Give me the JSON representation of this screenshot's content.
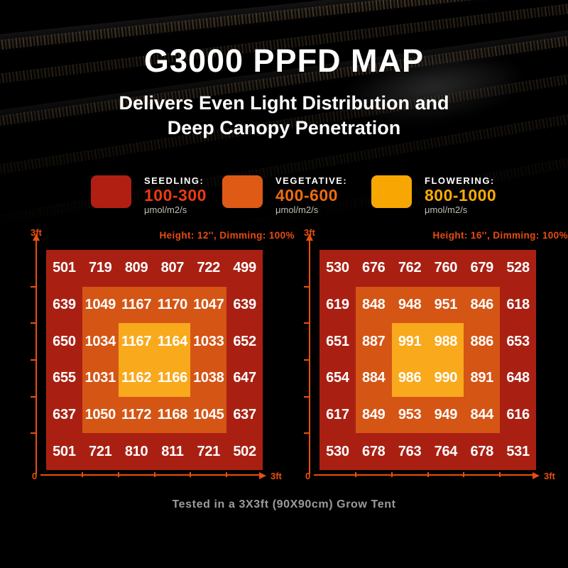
{
  "title": "G3000 PPFD MAP",
  "subtitle": {
    "line1": "Delivers Even Light Distribution and",
    "line2": "Deep Canopy Penetration"
  },
  "legend": {
    "items": [
      {
        "label": "SEEDLING:",
        "range": "100-300",
        "unit": "μmol/m2/s",
        "swatch_color": "#b01f12",
        "range_color": "#ef3a12"
      },
      {
        "label": "VEGETATIVE:",
        "range": "400-600",
        "unit": "μmol/m2/s",
        "swatch_color": "#de5a15",
        "range_color": "#ee6c0e"
      },
      {
        "label": "FLOWERING:",
        "range": "800-1000",
        "unit": "μmol/m2/s",
        "swatch_color": "#f8a702",
        "range_color": "#f9ab07"
      }
    ]
  },
  "axis": {
    "y_max": "3ft",
    "origin": "0",
    "x_max": "3ft"
  },
  "footer": "Tested in a 3X3ft (90X90cm) Grow Tent",
  "colors": {
    "background": "#000000",
    "zone_low": "#a92013",
    "zone_mid": "#d55515",
    "zone_high": "#f9a91c",
    "axis": "#e8500e",
    "header_text": "#e84b12",
    "value_text": "#ffffff",
    "footer_text": "#9c9c9c"
  },
  "chart_data": [
    {
      "type": "heatmap",
      "title": "Height: 12'', Dimming: 100%",
      "unit": "μmol/m2/s",
      "x_axis": {
        "min_label": "0",
        "max_label": "3ft"
      },
      "y_axis": {
        "min_label": "0",
        "max_label": "3ft"
      },
      "grid_size": "6x6",
      "values": [
        [
          501,
          719,
          809,
          807,
          722,
          499
        ],
        [
          639,
          1049,
          1167,
          1170,
          1047,
          639
        ],
        [
          650,
          1034,
          1167,
          1164,
          1033,
          652
        ],
        [
          655,
          1031,
          1162,
          1166,
          1038,
          647
        ],
        [
          637,
          1050,
          1172,
          1168,
          1045,
          637
        ],
        [
          501,
          721,
          810,
          811,
          721,
          502
        ]
      ],
      "zones": {
        "outer_ring_color": "#a92013",
        "middle_ring_color": "#d55515",
        "center_color": "#f9a91c"
      }
    },
    {
      "type": "heatmap",
      "title": "Height: 16'', Dimming: 100%",
      "unit": "μmol/m2/s",
      "x_axis": {
        "min_label": "0",
        "max_label": "3ft"
      },
      "y_axis": {
        "min_label": "0",
        "max_label": "3ft"
      },
      "grid_size": "6x6",
      "values": [
        [
          530,
          676,
          762,
          760,
          679,
          528
        ],
        [
          619,
          848,
          948,
          951,
          846,
          618
        ],
        [
          651,
          887,
          991,
          988,
          886,
          653
        ],
        [
          654,
          884,
          986,
          990,
          891,
          648
        ],
        [
          617,
          849,
          953,
          949,
          844,
          616
        ],
        [
          530,
          678,
          763,
          764,
          678,
          531
        ]
      ],
      "zones": {
        "outer_ring_color": "#a92013",
        "middle_ring_color": "#d55515",
        "center_color": "#f9a91c"
      }
    }
  ]
}
